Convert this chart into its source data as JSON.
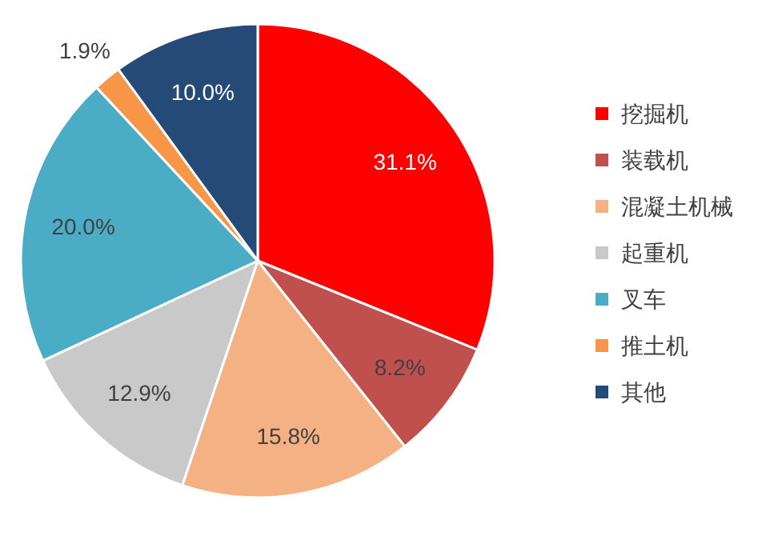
{
  "chart_data": {
    "type": "pie",
    "categories": [
      "挖掘机",
      "装载机",
      "混凝土机械",
      "起重机",
      "叉车",
      "推土机",
      "其他"
    ],
    "values": [
      31.1,
      8.2,
      15.8,
      12.9,
      20.0,
      1.9,
      10.0
    ],
    "colors": [
      "#ff0000",
      "#c0504d",
      "#f4b183",
      "#c9c9c9",
      "#4bacc6",
      "#f79646",
      "#254a78"
    ],
    "value_labels": [
      "31.1%",
      "8.2%",
      "15.8%",
      "12.9%",
      "20.0%",
      "1.9%",
      "10.0%"
    ],
    "legend": "right"
  }
}
